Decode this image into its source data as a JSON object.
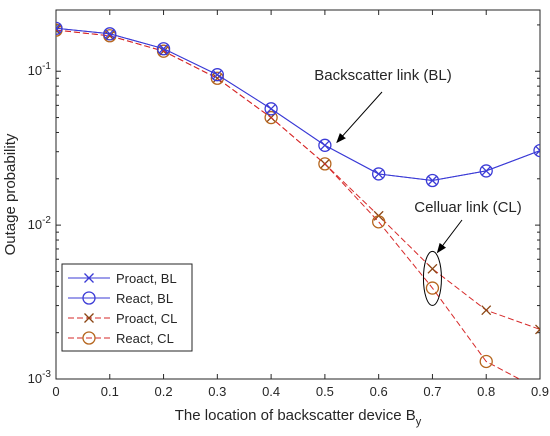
{
  "chart_data": {
    "type": "line",
    "xlabel": "The location of backscatter device B",
    "xlabel_subscript": "y",
    "ylabel": "Outage probability",
    "xlim": [
      0,
      0.9
    ],
    "ylim": [
      0.001,
      0.25
    ],
    "yscale": "log",
    "xticks": [
      "0",
      "0.1",
      "0.2",
      "0.3",
      "0.4",
      "0.5",
      "0.6",
      "0.7",
      "0.8",
      "0.9"
    ],
    "yticks": [
      {
        "value": 0.001,
        "base": "10",
        "exp": "-3"
      },
      {
        "value": 0.01,
        "base": "10",
        "exp": "-2"
      },
      {
        "value": 0.1,
        "base": "10",
        "exp": "-1"
      }
    ],
    "grid": false,
    "legend_position": "bottom-left",
    "x": [
      0,
      0.1,
      0.2,
      0.3,
      0.4,
      0.5,
      0.6,
      0.7,
      0.8,
      0.9
    ],
    "series": [
      {
        "name": "Proact, BL",
        "color": "#3b3bd6",
        "dash": "solid",
        "marker": "x",
        "values": [
          0.19,
          0.175,
          0.14,
          0.095,
          0.057,
          0.033,
          0.0215,
          0.0195,
          0.0225,
          0.0305
        ]
      },
      {
        "name": "React, BL",
        "color": "#3b3bd6",
        "dash": "solid",
        "marker": "o",
        "values": [
          0.19,
          0.175,
          0.14,
          0.095,
          0.057,
          0.033,
          0.0215,
          0.0195,
          0.0225,
          0.0305
        ]
      },
      {
        "name": "Proact, CL",
        "color": "#8b4513",
        "line_color": "#d62828",
        "dash": "dashed",
        "marker": "x",
        "values": [
          0.185,
          0.17,
          0.135,
          0.09,
          0.05,
          0.025,
          0.0115,
          0.0052,
          0.0028,
          0.0021
        ]
      },
      {
        "name": "React, CL",
        "color": "#b5651d",
        "line_color": "#d62828",
        "dash": "dashed",
        "marker": "o",
        "values": [
          0.185,
          0.17,
          0.135,
          0.09,
          0.05,
          0.025,
          0.0105,
          0.0039,
          0.0013,
          0.00085
        ]
      }
    ],
    "annotations": [
      {
        "text": "Backscatter link (BL)",
        "target_x": 0.5,
        "target_y": 0.033
      },
      {
        "text": "Celluar link (CL)",
        "target_x": 0.7,
        "target_y": 0.0052
      }
    ]
  }
}
